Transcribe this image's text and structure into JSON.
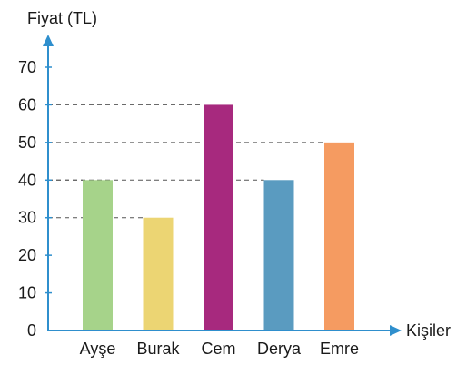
{
  "chart_data": {
    "type": "bar",
    "ylabel": "Fiyat (TL)",
    "xlabel": "Kişiler",
    "categories": [
      "Ayşe",
      "Burak",
      "Cem",
      "Derya",
      "Emre"
    ],
    "values": [
      40,
      30,
      60,
      40,
      50
    ],
    "colors": [
      "#a6d38a",
      "#ecd573",
      "#a7297e",
      "#5a9bc0",
      "#f59b61"
    ],
    "yticks": [
      0,
      10,
      20,
      30,
      40,
      50,
      60,
      70
    ],
    "ylim": [
      0,
      70
    ],
    "grid": false,
    "guide_lines": "dashed from y-axis to bar tops",
    "axis_color": "#2f8fcd"
  }
}
